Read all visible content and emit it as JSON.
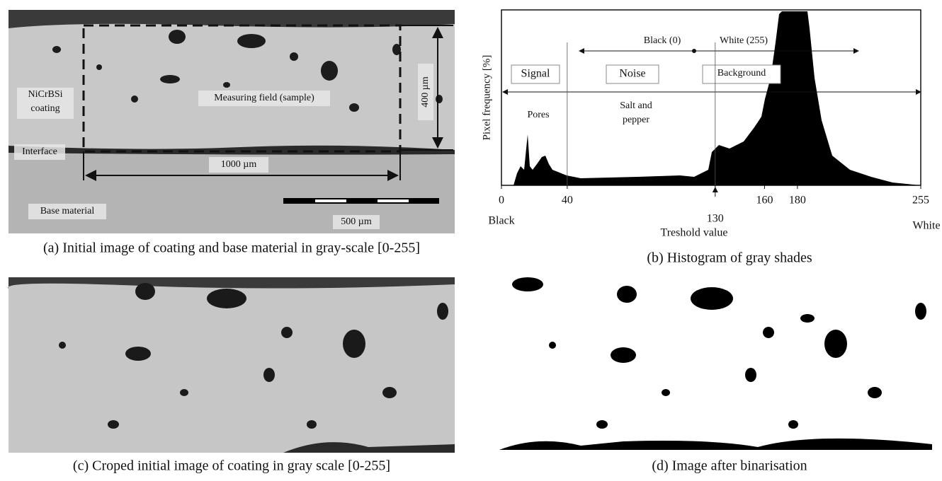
{
  "panel_a": {
    "caption": "(a) Initial image of coating and base material in gray-scale [0-255]",
    "labels": {
      "coating_1": "NiCrBSi",
      "coating_2": "coating",
      "field": "Measuring field (sample)",
      "height": "400 µm",
      "interface": "Interface",
      "width": "1000 µm",
      "base": "Base material",
      "scale": "500 µm"
    }
  },
  "panel_b": {
    "caption": "(b) Histogram of gray shades",
    "y_label": "Pixel frequency [%]",
    "x_label": "Treshold value",
    "x_left": "Black",
    "x_right": "White",
    "xlim": [
      0,
      255
    ],
    "xticks": [
      0,
      40,
      130,
      160,
      180,
      255
    ],
    "annotations": {
      "black": "Black (0)",
      "white": "White (255)",
      "signal": "Signal",
      "noise": "Noise",
      "background": "Background",
      "pores": "Pores",
      "salt_1": "Salt and",
      "salt_2": "pepper"
    }
  },
  "panel_c": {
    "caption": "(c) Croped initial image of coating in gray scale [0-255]"
  },
  "panel_d": {
    "caption": "(d) Image after binarisation"
  }
}
